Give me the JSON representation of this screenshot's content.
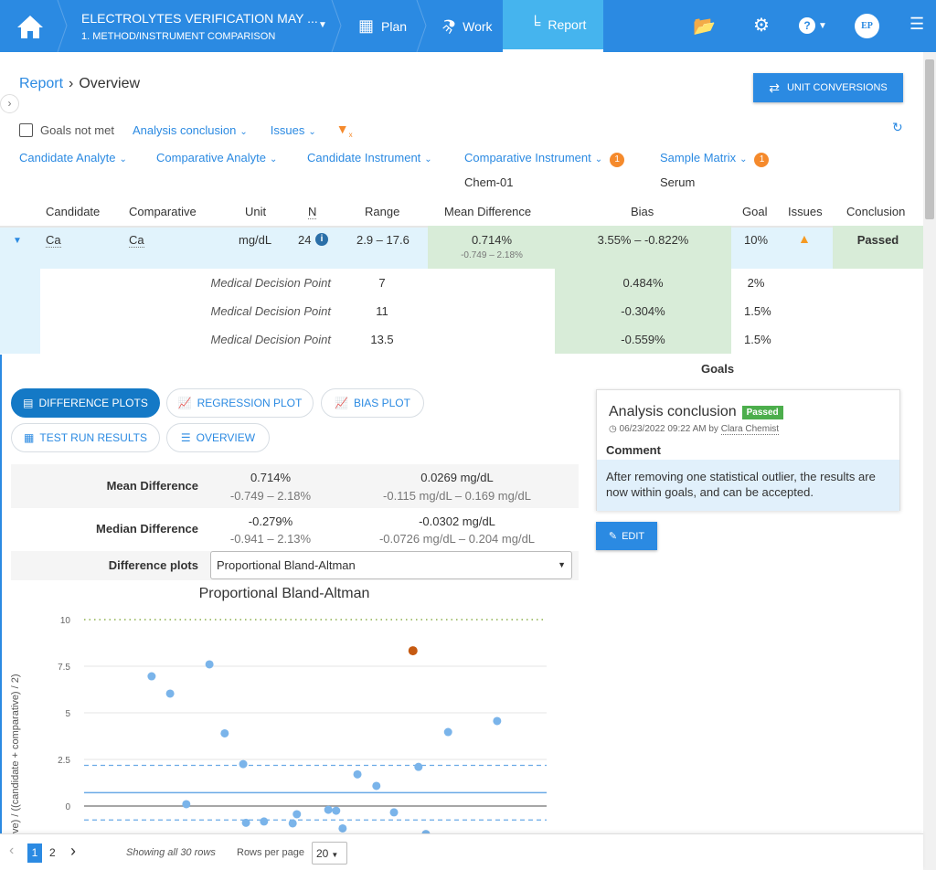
{
  "topbar": {
    "project_title": "ELECTROLYTES VERIFICATION MAY ...",
    "project_subtitle": "1. METHOD/INSTRUMENT COMPARISON",
    "tabs": [
      {
        "label": "Plan"
      },
      {
        "label": "Work"
      },
      {
        "label": "Report"
      }
    ],
    "avatar": "EP",
    "help": "?"
  },
  "breadcrumb": {
    "parent": "Report",
    "current": "Overview"
  },
  "unit_conversions_label": "UNIT CONVERSIONS",
  "filters": {
    "goals_not_met": "Goals not met",
    "analysis_conclusion": "Analysis conclusion",
    "issues": "Issues",
    "candidate_analyte": "Candidate Analyte",
    "comparative_analyte": "Comparative Analyte",
    "candidate_instrument": "Candidate Instrument",
    "comparative_instrument": "Comparative Instrument",
    "comparative_instrument_count": "1",
    "comparative_instrument_value": "Chem-01",
    "sample_matrix": "Sample Matrix",
    "sample_matrix_count": "1",
    "sample_matrix_value": "Serum"
  },
  "table": {
    "headers": [
      "Candidate",
      "Comparative",
      "Unit",
      "N",
      "Range",
      "Mean Difference",
      "Bias",
      "Goal",
      "Issues",
      "Conclusion"
    ],
    "row": {
      "candidate": "Ca",
      "comparative": "Ca",
      "unit": "mg/dL",
      "n": "24",
      "range": "2.9 – 17.6",
      "mean_diff": "0.714%",
      "mean_diff_ci": "-0.749 – 2.18%",
      "bias": "3.55% – -0.822%",
      "goal": "10%",
      "conclusion": "Passed"
    },
    "decision_points": [
      {
        "label": "Medical Decision Point",
        "value": "7",
        "bias": "0.484%",
        "goal": "2%"
      },
      {
        "label": "Medical Decision Point",
        "value": "11",
        "bias": "-0.304%",
        "goal": "1.5%"
      },
      {
        "label": "Medical Decision Point",
        "value": "13.5",
        "bias": "-0.559%",
        "goal": "1.5%"
      }
    ],
    "goals_label": "Goals"
  },
  "plot_tabs": [
    "DIFFERENCE PLOTS",
    "REGRESSION PLOT",
    "BIAS PLOT",
    "TEST RUN RESULTS",
    "OVERVIEW"
  ],
  "stats": {
    "mean": {
      "label": "Mean Difference",
      "pct": "0.714%",
      "pct_ci": "-0.749 – 2.18%",
      "abs": "0.0269 mg/dL",
      "abs_ci": "-0.115 mg/dL – 0.169 mg/dL"
    },
    "median": {
      "label": "Median Difference",
      "pct": "-0.279%",
      "pct_ci": "-0.941 – 2.13%",
      "abs": "-0.0302 mg/dL",
      "abs_ci": "-0.0726 mg/dL – 0.204 mg/dL"
    },
    "plot_select_label": "Difference plots",
    "plot_select_value": "Proportional Bland-Altman"
  },
  "conclusion": {
    "title": "Analysis conclusion",
    "status": "Passed",
    "timestamp": "06/23/2022 09:22 AM by",
    "author": "Clara Chemist",
    "comment_label": "Comment",
    "comment": "After removing one statistical outlier, the results are now within goals, and can be accepted.",
    "edit": "EDIT"
  },
  "chart_data": {
    "type": "scatter",
    "title": "Proportional Bland-Altman",
    "ylabel": "ve) / ((candidate + comparative) / 2)",
    "ylim": [
      -1.5,
      10.5
    ],
    "yticks": [
      "10",
      "7.5",
      "5",
      "2.5",
      "0"
    ],
    "mean_line": 0.714,
    "upper_limit": 2.18,
    "lower_limit": -0.749,
    "goal_line": 10,
    "xlim": [
      0,
      100
    ],
    "points": [
      {
        "x": 14.6,
        "y": 6.96
      },
      {
        "x": 18.6,
        "y": 6.03
      },
      {
        "x": 22.1,
        "y": 0.1
      },
      {
        "x": 27.1,
        "y": 7.6
      },
      {
        "x": 30.4,
        "y": 3.9
      },
      {
        "x": 34.4,
        "y": 2.25
      },
      {
        "x": 35,
        "y": -0.9
      },
      {
        "x": 38.9,
        "y": -0.83
      },
      {
        "x": 45.1,
        "y": -0.93
      },
      {
        "x": 46,
        "y": -0.44
      },
      {
        "x": 52.8,
        "y": -0.2
      },
      {
        "x": 54.5,
        "y": -0.25
      },
      {
        "x": 55.9,
        "y": -1.2
      },
      {
        "x": 59.1,
        "y": 1.7
      },
      {
        "x": 63.2,
        "y": 1.08
      },
      {
        "x": 67,
        "y": -0.34
      },
      {
        "x": 72.3,
        "y": 2.1
      },
      {
        "x": 73.9,
        "y": -1.5
      },
      {
        "x": 78.7,
        "y": 3.97
      },
      {
        "x": 89.3,
        "y": 4.56
      }
    ],
    "outliers": [
      {
        "x": 71.1,
        "y": 8.33
      }
    ]
  },
  "footer": {
    "pages": [
      "1",
      "2"
    ],
    "showing": "Showing all 30 rows",
    "rows_per_page_label": "Rows per page",
    "rows_per_page": "20"
  },
  "colors": {
    "primary": "#2b8ae2",
    "point": "#7ab4ea",
    "outlier": "#c65a11",
    "goal": "#8bb04a",
    "passed": "#4cae4c"
  }
}
